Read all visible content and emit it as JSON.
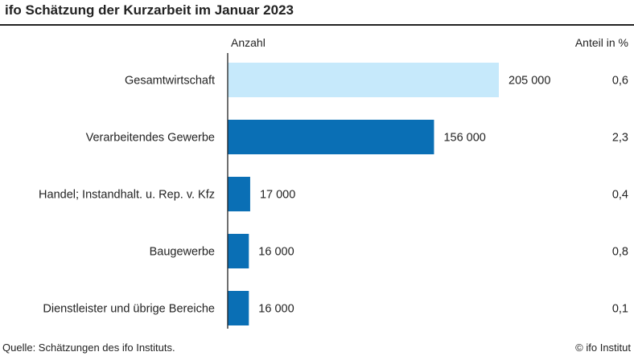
{
  "header": {
    "title": "ifo Schätzung der Kurzarbeit im Januar 2023"
  },
  "footer": {
    "source": "Quelle: Schätzungen des ifo Instituts.",
    "credit": "© ifo Institut"
  },
  "colors": {
    "highlight": "#c6e9fb",
    "bar": "#0a6fb5",
    "text": "#222222",
    "axis": "#222222"
  },
  "chart_data": {
    "type": "bar",
    "orientation": "horizontal",
    "value_header": "Anzahl",
    "share_header": "Anteil in %",
    "categories": [
      "Gesamtwirtschaft",
      "Verarbeitendes Gewerbe",
      "Handel; Instandhalt. u. Rep. v. Kfz",
      "Baugewerbe",
      "Dienstleister und übrige Bereiche"
    ],
    "values": [
      205000,
      156000,
      17000,
      16000,
      16000
    ],
    "value_labels": [
      "205 000",
      "156 000",
      "17 000",
      "16 000",
      "16 000"
    ],
    "shares": [
      "0,6",
      "2,3",
      "0,4",
      "0,8",
      "0,1"
    ],
    "highlight_index": 0,
    "xlim": [
      0,
      205000
    ],
    "grid": false
  }
}
